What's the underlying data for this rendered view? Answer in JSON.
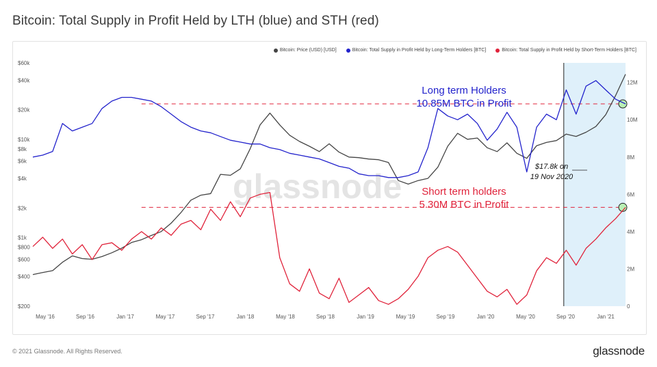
{
  "title": "Bitcoin: Total Supply in Profit Held by LTH (blue) and STH (red)",
  "legend": [
    {
      "label": "Bitcoin: Price (USD) [USD]",
      "color": "#444444"
    },
    {
      "label": "Bitcoin: Total Supply in Profit Held by Long-Term Holders [BTC]",
      "color": "#2222cc"
    },
    {
      "label": "Bitcoin: Total Supply in Profit Held by Short-Term Holders [BTC]",
      "color": "#e0223a"
    }
  ],
  "footer": {
    "copyright": "© 2021 Glassnode. All Rights Reserved.",
    "logo": "glassnode"
  },
  "watermark": "glassnode",
  "annotations": {
    "lth_line1": "Long term Holders",
    "lth_line2": "10.85M BTC in Profit",
    "sth_line1": "Short term holders",
    "sth_line2": "5.30M BTC in Profit",
    "price_line1": "$17.8k on",
    "price_line2": "19 Nov 2020"
  },
  "chart_data": {
    "type": "line",
    "x_ticks": [
      "May '16",
      "Sep '16",
      "Jan '17",
      "May '17",
      "Sep '17",
      "Jan '18",
      "May '18",
      "Sep '18",
      "Jan '19",
      "May '19",
      "Sep '19",
      "Jan '20",
      "May '20",
      "Sep '20",
      "Jan '21"
    ],
    "left_axis_ticks": [
      "$60k",
      "$40k",
      "$20k",
      "$10k",
      "$8k",
      "$6k",
      "$4k",
      "$2k",
      "$1k",
      "$800",
      "$600",
      "$400",
      "$200"
    ],
    "right_axis_ticks": [
      "12M",
      "10M",
      "8M",
      "6M",
      "4M",
      "2M",
      "0"
    ],
    "left_axis_scale": "log",
    "highlight_region": {
      "from": "19 Nov 2020",
      "to": "Feb 2021",
      "color": "#dff0fa"
    },
    "reference_lines": [
      {
        "series": "LTH",
        "value_btc": 10850000,
        "style": "dashed",
        "color": "#e0223a"
      },
      {
        "series": "STH",
        "value_btc": 5300000,
        "style": "dashed",
        "color": "#e0223a"
      }
    ],
    "series": [
      {
        "name": "Bitcoin: Price (USD) [USD]",
        "color": "#444444",
        "axis": "left",
        "x": [
          0,
          2,
          4,
          6,
          8,
          10,
          12,
          14,
          16,
          18,
          20,
          22,
          24,
          26,
          28,
          30,
          32,
          34,
          36,
          38,
          40,
          42,
          44,
          46,
          48,
          50,
          52,
          54,
          56,
          58,
          60,
          62,
          64,
          66,
          68,
          70,
          72,
          74,
          76,
          78,
          80,
          82,
          84,
          86,
          88,
          90,
          92,
          94,
          96,
          98,
          100,
          102,
          104,
          106,
          108,
          110,
          112,
          114,
          116,
          118,
          120
        ],
        "values": [
          420,
          440,
          460,
          560,
          650,
          610,
          600,
          640,
          700,
          780,
          890,
          950,
          1050,
          1150,
          1400,
          1800,
          2400,
          2700,
          2800,
          4400,
          4300,
          5000,
          8000,
          14000,
          18500,
          14000,
          11000,
          9500,
          8500,
          7500,
          9000,
          7400,
          6600,
          6500,
          6300,
          6200,
          5800,
          3800,
          3500,
          3800,
          4000,
          5200,
          8500,
          11500,
          10000,
          10300,
          8200,
          7500,
          9200,
          7200,
          6400,
          8600,
          9300,
          9700,
          11300,
          10700,
          11800,
          13500,
          17800,
          28000,
          46000
        ]
      },
      {
        "name": "Bitcoin: Total Supply in Profit Held by Long-Term Holders [BTC]",
        "color": "#2222cc",
        "axis": "right",
        "x": [
          0,
          2,
          4,
          6,
          8,
          10,
          12,
          14,
          16,
          18,
          20,
          22,
          24,
          26,
          28,
          30,
          32,
          34,
          36,
          38,
          40,
          42,
          44,
          46,
          48,
          50,
          52,
          54,
          56,
          58,
          60,
          62,
          64,
          66,
          68,
          70,
          72,
          74,
          76,
          78,
          80,
          82,
          84,
          86,
          88,
          90,
          92,
          94,
          96,
          98,
          100,
          102,
          104,
          106,
          108,
          110,
          112,
          114,
          116,
          118,
          120
        ],
        "values": [
          8.0,
          8.1,
          8.3,
          9.8,
          9.4,
          9.6,
          9.8,
          10.6,
          11.0,
          11.2,
          11.2,
          11.1,
          11.0,
          10.7,
          10.3,
          9.9,
          9.6,
          9.4,
          9.3,
          9.1,
          8.9,
          8.8,
          8.7,
          8.7,
          8.5,
          8.4,
          8.2,
          8.1,
          8.0,
          7.9,
          7.7,
          7.5,
          7.4,
          7.1,
          7.0,
          7.0,
          6.9,
          6.9,
          7.0,
          7.2,
          8.5,
          10.6,
          10.2,
          10.0,
          10.3,
          9.8,
          8.9,
          9.5,
          10.4,
          9.6,
          7.2,
          9.6,
          10.3,
          10.0,
          11.6,
          10.3,
          11.8,
          12.1,
          11.6,
          11.1,
          10.85
        ]
      },
      {
        "name": "Bitcoin: Total Supply in Profit Held by Short-Term Holders [BTC]",
        "color": "#e0223a",
        "axis": "right",
        "x": [
          0,
          2,
          4,
          6,
          8,
          10,
          12,
          14,
          16,
          18,
          20,
          22,
          24,
          26,
          28,
          30,
          32,
          34,
          36,
          38,
          40,
          42,
          44,
          46,
          48,
          50,
          52,
          54,
          56,
          58,
          60,
          62,
          64,
          66,
          68,
          70,
          72,
          74,
          76,
          78,
          80,
          82,
          84,
          86,
          88,
          90,
          92,
          94,
          96,
          98,
          100,
          102,
          104,
          106,
          108,
          110,
          112,
          114,
          116,
          118,
          120
        ],
        "values": [
          3.2,
          3.7,
          3.1,
          3.6,
          2.8,
          3.3,
          2.5,
          3.3,
          3.4,
          3.0,
          3.6,
          4.0,
          3.6,
          4.2,
          3.8,
          4.4,
          4.6,
          4.1,
          5.2,
          4.6,
          5.6,
          4.8,
          5.8,
          6.0,
          6.1,
          2.6,
          1.2,
          0.8,
          2.0,
          0.7,
          0.4,
          1.5,
          0.2,
          0.6,
          1.0,
          0.3,
          0.1,
          0.4,
          0.9,
          1.6,
          2.6,
          3.0,
          3.2,
          2.9,
          2.2,
          1.5,
          0.8,
          0.5,
          0.9,
          0.1,
          0.6,
          1.9,
          2.6,
          2.3,
          3.0,
          2.2,
          3.1,
          3.6,
          4.2,
          4.7,
          5.3
        ]
      }
    ]
  }
}
